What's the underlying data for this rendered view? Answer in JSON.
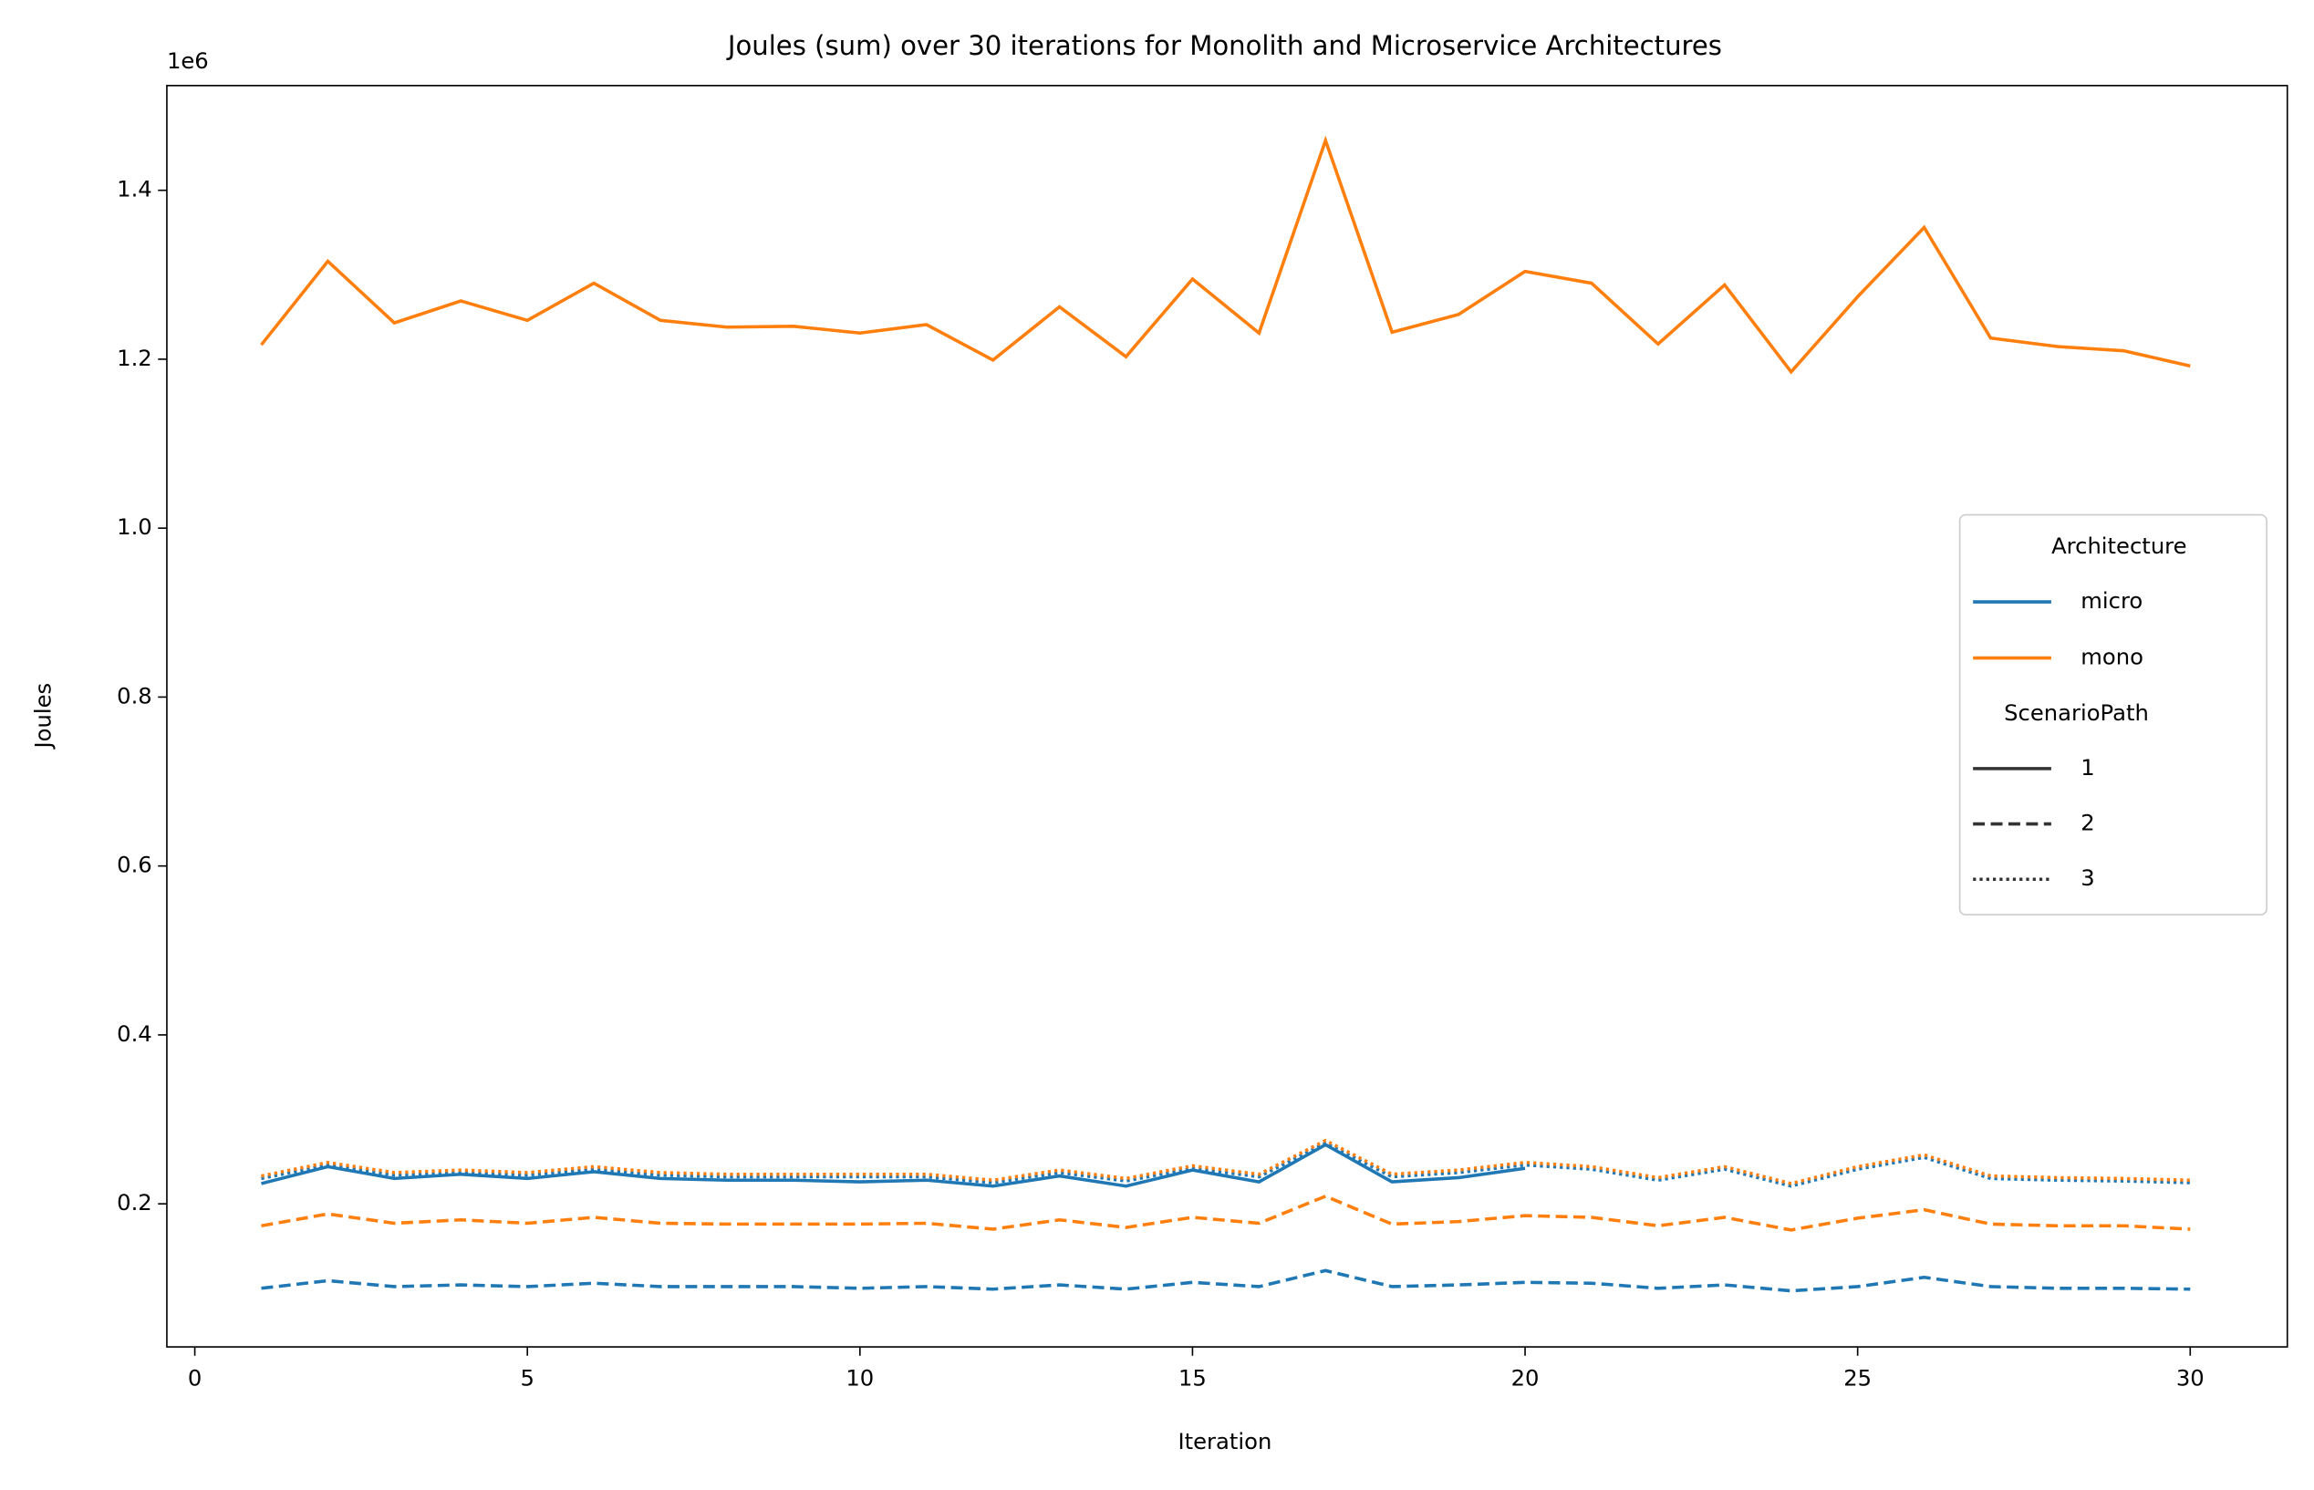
{
  "chart_data": {
    "type": "line",
    "title": "Joules (sum) over 30 iterations for Monolith and Microservice Architectures",
    "x_label": "Iteration",
    "y_label": "Joules",
    "y_offset_label": "1e6",
    "xlim": [
      -0.42,
      31.46
    ],
    "ylim": [
      30600,
      1524000
    ],
    "xticks": [
      0,
      5,
      10,
      15,
      20,
      25,
      30
    ],
    "yticks": [
      {
        "value": 200000,
        "label": "0.2"
      },
      {
        "value": 400000,
        "label": "0.4"
      },
      {
        "value": 600000,
        "label": "0.6"
      },
      {
        "value": 800000,
        "label": "0.8"
      },
      {
        "value": 1000000,
        "label": "1.0"
      },
      {
        "value": 1200000,
        "label": "1.2"
      },
      {
        "value": 1400000,
        "label": "1.4"
      }
    ],
    "x": [
      1,
      2,
      3,
      4,
      5,
      6,
      7,
      8,
      9,
      10,
      11,
      12,
      13,
      14,
      15,
      16,
      17,
      18,
      19,
      20,
      21,
      22,
      23,
      24,
      25,
      26,
      27,
      28,
      29,
      30
    ],
    "legend": {
      "architecture_title": "Architecture",
      "architecture": [
        {
          "name": "micro",
          "color": "#1f77b4"
        },
        {
          "name": "mono",
          "color": "#ff7f0e"
        }
      ],
      "scenario_title": "ScenarioPath",
      "scenario": [
        {
          "name": "1",
          "dash": "solid"
        },
        {
          "name": "2",
          "dash": "dashed"
        },
        {
          "name": "3",
          "dash": "dotted"
        }
      ]
    },
    "series": [
      {
        "architecture": "micro",
        "scenario": "2",
        "color": "#1f77b4",
        "dash": "dashed",
        "values": [
          100000,
          109000,
          102000,
          104000,
          102000,
          106000,
          102000,
          102000,
          102000,
          100000,
          102000,
          99000,
          104000,
          99000,
          107000,
          102000,
          121000,
          102000,
          104000,
          107000,
          106000,
          100000,
          104000,
          97000,
          102000,
          113000,
          102000,
          100000,
          100000,
          99000
        ]
      },
      {
        "architecture": "mono",
        "scenario": "2",
        "color": "#ff7f0e",
        "dash": "dashed",
        "values": [
          174000,
          188000,
          177000,
          181000,
          177000,
          184000,
          177000,
          176000,
          176000,
          176000,
          177000,
          170000,
          181000,
          172000,
          184000,
          177000,
          209000,
          176000,
          179000,
          186000,
          184000,
          174000,
          184000,
          169000,
          183000,
          193000,
          176000,
          174000,
          174000,
          170000
        ]
      },
      {
        "architecture": "micro",
        "scenario": "3",
        "color": "#1f77b4",
        "dash": "dotted",
        "values": [
          230000,
          246000,
          234000,
          237000,
          234000,
          241000,
          234000,
          232000,
          232000,
          232000,
          232000,
          225000,
          237000,
          227000,
          242000,
          232000,
          272000,
          232000,
          237000,
          246000,
          241000,
          228000,
          241000,
          221000,
          241000,
          255000,
          230000,
          228000,
          227000,
          225000
        ]
      },
      {
        "architecture": "micro",
        "scenario": "1",
        "color": "#1f77b4",
        "dash": "solid",
        "values": [
          224000,
          244000,
          230000,
          235000,
          230000,
          238000,
          230000,
          228000,
          228000,
          226000,
          228000,
          221000,
          233000,
          221000,
          240000,
          226000,
          270000,
          226000,
          231000,
          242000,
          null,
          null,
          null,
          null,
          null,
          null,
          null,
          null,
          null,
          null
        ]
      },
      {
        "architecture": "mono",
        "scenario": "3",
        "color": "#ff7f0e",
        "dash": "dotted",
        "values": [
          233000,
          249000,
          237000,
          240000,
          237000,
          244000,
          237000,
          235000,
          235000,
          235000,
          235000,
          228000,
          240000,
          230000,
          245000,
          235000,
          275000,
          235000,
          240000,
          249000,
          244000,
          231000,
          244000,
          224000,
          244000,
          258000,
          233000,
          231000,
          230000,
          228000
        ]
      },
      {
        "architecture": "mono",
        "scenario": "1",
        "color": "#ff7f0e",
        "dash": "solid",
        "values": [
          1217000,
          1316000,
          1243000,
          1269000,
          1246000,
          1290000,
          1246000,
          1238000,
          1239000,
          1231000,
          1241000,
          1199000,
          1262000,
          1203000,
          1295000,
          1231000,
          1459000,
          1232000,
          1253000,
          1304000,
          1290000,
          1218000,
          1288000,
          1185000,
          1274000,
          1356000,
          1225000,
          1215000,
          1210000,
          1192000
        ]
      }
    ]
  }
}
